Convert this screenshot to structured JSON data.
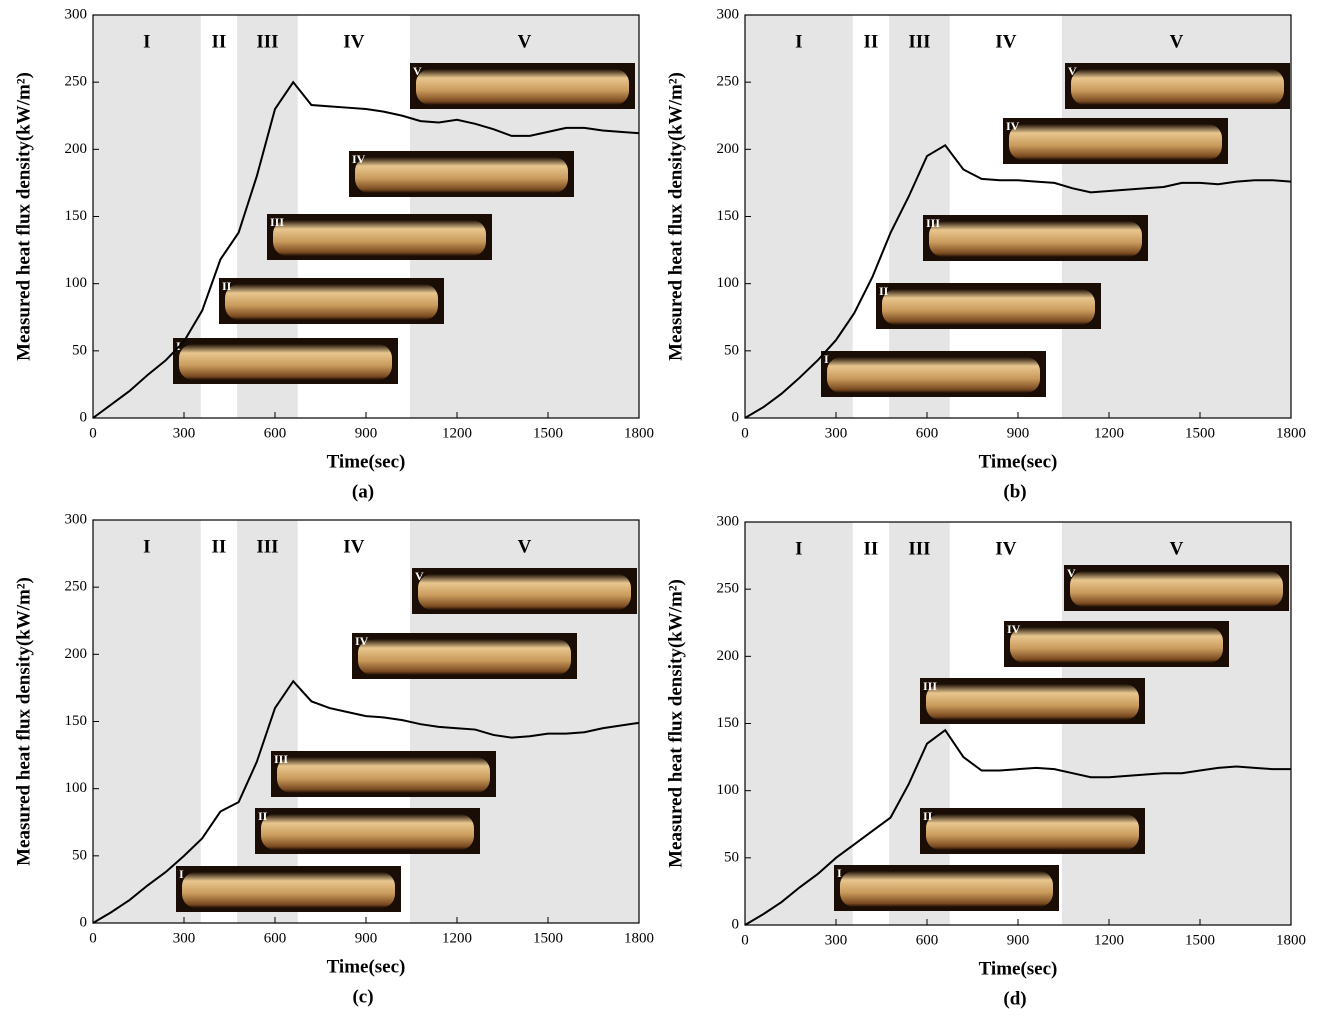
{
  "chart_data": [
    {
      "type": "line",
      "caption": "(a)",
      "xlabel": "Time(sec)",
      "ylabel": "Measured heat flux density(kW/m²)",
      "xlim": [
        0,
        1800
      ],
      "xticks": [
        0,
        300,
        600,
        900,
        1200,
        1500,
        1800
      ],
      "ylim": [
        0,
        300
      ],
      "yticks": [
        0,
        50,
        100,
        150,
        200,
        250,
        300
      ],
      "color": "#000000",
      "shade_color": "#e5e5e5",
      "regions": [
        {
          "label": "I",
          "start": 0,
          "end": 355,
          "shaded": true
        },
        {
          "label": "II",
          "start": 355,
          "end": 475,
          "shaded": false
        },
        {
          "label": "III",
          "start": 475,
          "end": 675,
          "shaded": true
        },
        {
          "label": "IV",
          "start": 675,
          "end": 1045,
          "shaded": false
        },
        {
          "label": "V",
          "start": 1045,
          "end": 1800,
          "shaded": true
        }
      ],
      "x": [
        0,
        60,
        120,
        180,
        240,
        300,
        360,
        420,
        480,
        540,
        600,
        660,
        720,
        780,
        840,
        900,
        960,
        1020,
        1080,
        1140,
        1200,
        1260,
        1320,
        1380,
        1440,
        1500,
        1560,
        1620,
        1680,
        1740,
        1800
      ],
      "values": [
        0,
        10,
        20,
        32,
        43,
        57,
        80,
        118,
        138,
        180,
        230,
        250,
        233,
        232,
        231,
        230,
        228,
        225,
        221,
        220,
        222,
        219,
        215,
        210,
        210,
        213,
        216,
        216,
        214,
        213,
        212
      ]
    },
    {
      "type": "line",
      "caption": "(b)",
      "xlabel": "Time(sec)",
      "ylabel": "Measured heat flux density(kW/m²)",
      "xlim": [
        0,
        1800
      ],
      "xticks": [
        0,
        300,
        600,
        900,
        1200,
        1500,
        1800
      ],
      "ylim": [
        0,
        300
      ],
      "yticks": [
        0,
        50,
        100,
        150,
        200,
        250,
        300
      ],
      "color": "#000000",
      "shade_color": "#e5e5e5",
      "regions": [
        {
          "label": "I",
          "start": 0,
          "end": 355,
          "shaded": true
        },
        {
          "label": "II",
          "start": 355,
          "end": 475,
          "shaded": false
        },
        {
          "label": "III",
          "start": 475,
          "end": 675,
          "shaded": true
        },
        {
          "label": "IV",
          "start": 675,
          "end": 1045,
          "shaded": false
        },
        {
          "label": "V",
          "start": 1045,
          "end": 1800,
          "shaded": true
        }
      ],
      "x": [
        0,
        60,
        120,
        180,
        240,
        300,
        360,
        420,
        480,
        540,
        600,
        660,
        720,
        780,
        840,
        900,
        960,
        1020,
        1080,
        1140,
        1200,
        1260,
        1320,
        1380,
        1440,
        1500,
        1560,
        1620,
        1680,
        1740,
        1800
      ],
      "values": [
        0,
        8,
        18,
        30,
        43,
        58,
        78,
        105,
        138,
        165,
        195,
        203,
        185,
        178,
        177,
        177,
        176,
        175,
        171,
        168,
        169,
        170,
        171,
        172,
        175,
        175,
        174,
        176,
        177,
        177,
        176
      ]
    },
    {
      "type": "line",
      "caption": "(c)",
      "xlabel": "Time(sec)",
      "ylabel": "Measured heat flux density(kW/m²)",
      "xlim": [
        0,
        1800
      ],
      "xticks": [
        0,
        300,
        600,
        900,
        1200,
        1500,
        1800
      ],
      "ylim": [
        0,
        300
      ],
      "yticks": [
        0,
        50,
        100,
        150,
        200,
        250,
        300
      ],
      "color": "#000000",
      "shade_color": "#e5e5e5",
      "regions": [
        {
          "label": "I",
          "start": 0,
          "end": 355,
          "shaded": true
        },
        {
          "label": "II",
          "start": 355,
          "end": 475,
          "shaded": false
        },
        {
          "label": "III",
          "start": 475,
          "end": 675,
          "shaded": true
        },
        {
          "label": "IV",
          "start": 675,
          "end": 1045,
          "shaded": false
        },
        {
          "label": "V",
          "start": 1045,
          "end": 1800,
          "shaded": true
        }
      ],
      "x": [
        0,
        60,
        120,
        180,
        240,
        300,
        360,
        420,
        480,
        540,
        600,
        660,
        720,
        780,
        840,
        900,
        960,
        1020,
        1080,
        1140,
        1200,
        1260,
        1320,
        1380,
        1440,
        1500,
        1560,
        1620,
        1680,
        1740,
        1800
      ],
      "values": [
        0,
        8,
        17,
        28,
        38,
        50,
        63,
        83,
        90,
        120,
        160,
        180,
        165,
        160,
        157,
        154,
        153,
        151,
        148,
        146,
        145,
        144,
        140,
        138,
        139,
        141,
        141,
        142,
        145,
        147,
        149
      ]
    },
    {
      "type": "line",
      "caption": "(d)",
      "xlabel": "Time(sec)",
      "ylabel": "Measured heat flux density(kW/m²)",
      "xlim": [
        0,
        1800
      ],
      "xticks": [
        0,
        300,
        600,
        900,
        1200,
        1500,
        1800
      ],
      "ylim": [
        0,
        300
      ],
      "yticks": [
        0,
        50,
        100,
        150,
        200,
        250,
        300
      ],
      "color": "#000000",
      "shade_color": "#e5e5e5",
      "regions": [
        {
          "label": "I",
          "start": 0,
          "end": 355,
          "shaded": true
        },
        {
          "label": "II",
          "start": 355,
          "end": 475,
          "shaded": false
        },
        {
          "label": "III",
          "start": 475,
          "end": 675,
          "shaded": true
        },
        {
          "label": "IV",
          "start": 675,
          "end": 1045,
          "shaded": false
        },
        {
          "label": "V",
          "start": 1045,
          "end": 1800,
          "shaded": true
        }
      ],
      "x": [
        0,
        60,
        120,
        180,
        240,
        300,
        360,
        420,
        480,
        540,
        600,
        660,
        720,
        780,
        840,
        900,
        960,
        1020,
        1080,
        1140,
        1200,
        1260,
        1320,
        1380,
        1440,
        1500,
        1560,
        1620,
        1680,
        1740,
        1800
      ],
      "values": [
        0,
        8,
        17,
        28,
        38,
        50,
        60,
        70,
        80,
        105,
        135,
        145,
        125,
        115,
        115,
        116,
        117,
        116,
        113,
        110,
        110,
        111,
        112,
        113,
        113,
        115,
        117,
        118,
        117,
        116,
        116
      ]
    }
  ]
}
